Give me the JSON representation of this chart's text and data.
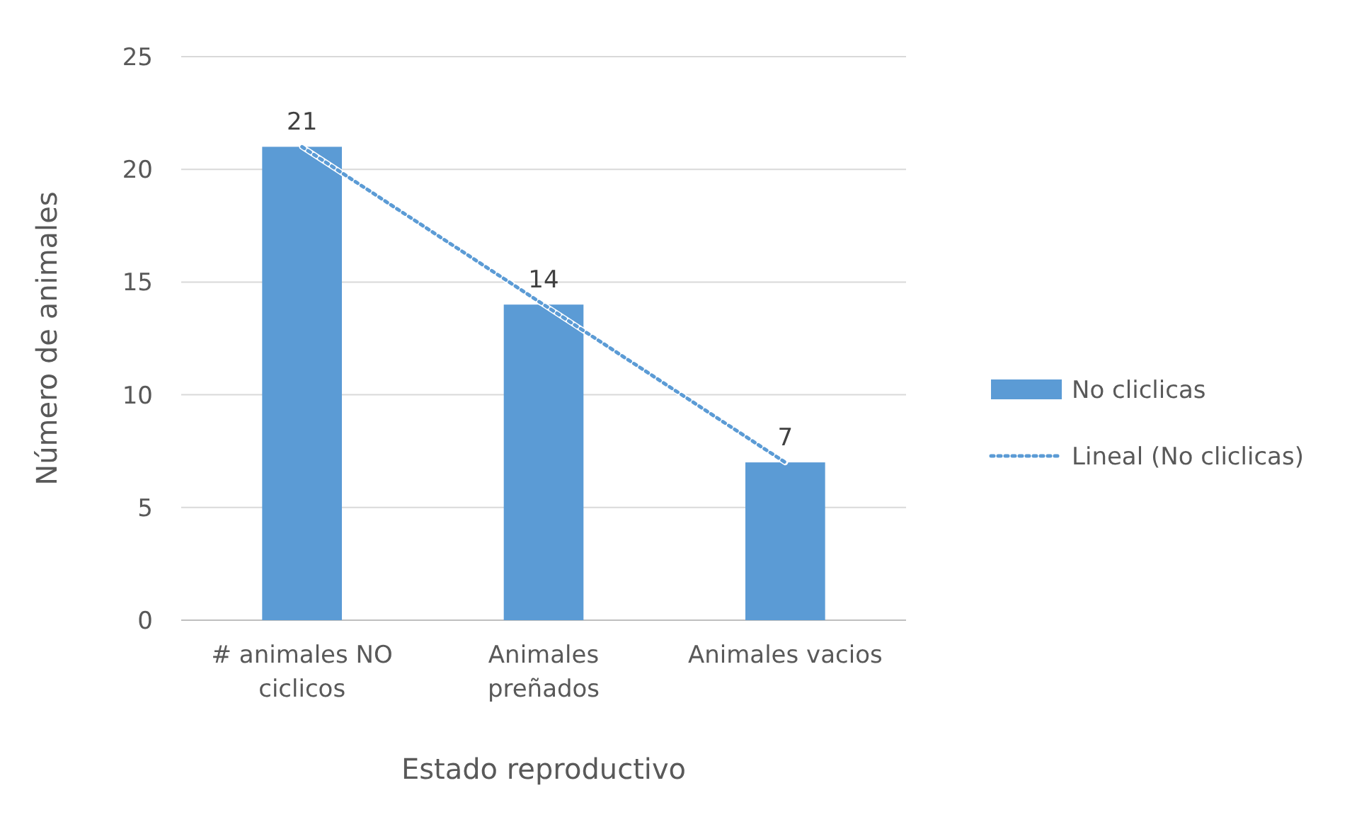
{
  "chart_data": {
    "type": "bar",
    "xlabel": "Estado reproductivo",
    "ylabel": "Número de animales",
    "categories": [
      "# animales NO ciclicos",
      "Animales preñados",
      "Animales vacios"
    ],
    "series": [
      {
        "name": "No cliclicas",
        "color": "#5b9bd5",
        "values": [
          21,
          14,
          7
        ],
        "value_labels": [
          "21",
          "14",
          "7"
        ]
      },
      {
        "name": "Lineal (No cliclicas)",
        "type": "line",
        "color": "#5b9bd5",
        "line_style": "dotted",
        "marker": "none",
        "x": [
          "# animales NO ciclicos",
          "Animales preñados",
          "Animales vacios"
        ],
        "values": [
          21,
          14,
          7
        ]
      }
    ],
    "ylim": [
      0,
      25
    ],
    "yticks": [
      0,
      5,
      10,
      15,
      20,
      25
    ],
    "grid": "y",
    "legend": "right"
  }
}
